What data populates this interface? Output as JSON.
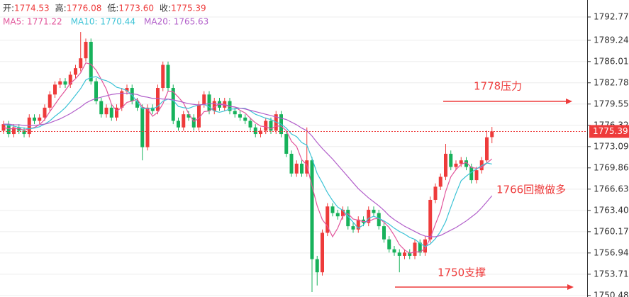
{
  "chart_data": {
    "type": "candlestick",
    "header": [
      {
        "label": "开:",
        "value": "1774.53"
      },
      {
        "label": "高:",
        "value": "1776.08"
      },
      {
        "label": "低:",
        "value": "1773.60"
      },
      {
        "label": "收:",
        "value": "1775.39"
      }
    ],
    "up_color": "#ee3b3b",
    "down_color": "#17b25b",
    "open": [
      1775.5,
      1776.5,
      1775,
      1776,
      1775.5,
      1775,
      1777.5,
      1777,
      1777.5,
      1779,
      1781,
      1782.5,
      1783,
      1782.5,
      1784,
      1785,
      1786.5,
      1789,
      1783,
      1780,
      1778,
      1779,
      1777.5,
      1779,
      1781.5,
      1782,
      1780,
      1779,
      1773,
      1779,
      1778.5,
      1782,
      1785.5,
      1782,
      1777,
      1776,
      1778,
      1777.5,
      1776,
      1779.5,
      1781,
      1778.5,
      1780,
      1779,
      1780,
      1778.5,
      1778,
      1777.5,
      1777,
      1776,
      1775,
      1775.5,
      1777,
      1775.5,
      1778,
      1775,
      1772,
      1769,
      1770.5,
      1769,
      1771,
      1756,
      1754,
      1760,
      1764,
      1763,
      1762.5,
      1763.5,
      1761,
      1760.5,
      1762,
      1761.5,
      1763.5,
      1763,
      1761,
      1759,
      1757.5,
      1757,
      1756.5,
      1757,
      1756.5,
      1758.5,
      1757,
      1759,
      1765,
      1767,
      1768.5,
      1772,
      1770,
      1770.5,
      1771,
      1770,
      1768,
      1769.5,
      1771,
      1774.53
    ],
    "high": [
      1777,
      1777,
      1776.5,
      1776.5,
      1776,
      1778,
      1778,
      1778,
      1779.5,
      1781.5,
      1783,
      1783.5,
      1783.5,
      1784.5,
      1785.5,
      1790.5,
      1789.5,
      1789.5,
      1783.5,
      1780.5,
      1779.5,
      1779.5,
      1779.5,
      1782,
      1782.5,
      1782.5,
      1780.5,
      1779.5,
      1779.5,
      1779.5,
      1782.5,
      1786,
      1786,
      1782.5,
      1777.5,
      1778.5,
      1778.5,
      1778,
      1780,
      1781.5,
      1781.5,
      1780.5,
      1780.5,
      1780.5,
      1780.5,
      1779,
      1778.5,
      1778,
      1777.5,
      1776.5,
      1776,
      1777.5,
      1777.5,
      1778.5,
      1778.5,
      1775.5,
      1772.5,
      1771,
      1771,
      1776,
      1771.5,
      1756.5,
      1760.5,
      1764.5,
      1764.5,
      1763.5,
      1764,
      1764,
      1761.5,
      1762.5,
      1762.5,
      1764,
      1764,
      1763.5,
      1761.5,
      1759.5,
      1758,
      1757.5,
      1757.5,
      1757.5,
      1759,
      1759,
      1759.5,
      1765.5,
      1767.5,
      1769,
      1773.5,
      1772.5,
      1771,
      1771.5,
      1771.5,
      1770.5,
      1770,
      1771.5,
      1775.5,
      1776.08
    ],
    "low": [
      1775,
      1774.5,
      1774.5,
      1775,
      1774.5,
      1774.5,
      1776.5,
      1776.5,
      1777,
      1778.5,
      1780.5,
      1782,
      1782,
      1782,
      1783.5,
      1784.5,
      1786,
      1782.5,
      1779.5,
      1777.5,
      1777.5,
      1777,
      1777,
      1778.5,
      1781,
      1779.5,
      1778.5,
      1771,
      1772.5,
      1778,
      1778,
      1781.5,
      1781.5,
      1776.5,
      1775.5,
      1775.5,
      1777,
      1775.5,
      1775.5,
      1779,
      1778,
      1778,
      1778.5,
      1778.5,
      1778,
      1777.5,
      1777,
      1776.5,
      1775.5,
      1774.5,
      1774.5,
      1775,
      1775,
      1775,
      1774.5,
      1771.5,
      1768.5,
      1768.5,
      1768.5,
      1768.5,
      1751,
      1752,
      1753.5,
      1759.5,
      1762.5,
      1762,
      1762,
      1760.5,
      1760,
      1760,
      1761,
      1761,
      1762.5,
      1760.5,
      1758.5,
      1757,
      1756.5,
      1754,
      1756,
      1756,
      1756,
      1756.5,
      1756.5,
      1758.5,
      1764.5,
      1766.5,
      1768,
      1769.5,
      1769.5,
      1770,
      1769.5,
      1767.5,
      1767.5,
      1769,
      1770.5,
      1773.6
    ],
    "close": [
      1776.5,
      1775,
      1776,
      1775.5,
      1775,
      1777.5,
      1777,
      1777.5,
      1779,
      1781,
      1782.5,
      1783,
      1782.5,
      1784,
      1785,
      1786.5,
      1789,
      1783,
      1780,
      1778,
      1779,
      1777.5,
      1779,
      1781.5,
      1782,
      1780,
      1779,
      1773,
      1779,
      1778.5,
      1782,
      1785.5,
      1782,
      1777,
      1776,
      1778,
      1777.5,
      1776,
      1779.5,
      1781,
      1778.5,
      1780,
      1779,
      1780,
      1778.5,
      1778,
      1777.5,
      1777,
      1776,
      1775,
      1775.5,
      1777,
      1775.5,
      1778,
      1775,
      1772,
      1769,
      1770.5,
      1769,
      1771,
      1756,
      1754,
      1760,
      1764,
      1763,
      1762.5,
      1763.5,
      1761,
      1760.5,
      1762,
      1761.5,
      1763.5,
      1763,
      1761,
      1759,
      1757.5,
      1757,
      1756.5,
      1757,
      1756.5,
      1758.5,
      1757,
      1759,
      1765,
      1767,
      1768.5,
      1772,
      1770,
      1770.5,
      1771,
      1770,
      1768,
      1769.5,
      1771,
      1774.5,
      1775.39
    ],
    "series": [
      {
        "name": "MA5",
        "label": "MA5: 1771.22",
        "color": "#e2559b",
        "values": [
          1776,
          1775.8,
          1775.8,
          1775.8,
          1775.6,
          1775.8,
          1776,
          1776.4,
          1777.2,
          1778.4,
          1779.5,
          1780.6,
          1781.6,
          1782.7,
          1783.4,
          1784.3,
          1785.8,
          1785.6,
          1784.7,
          1783.3,
          1781.8,
          1779.5,
          1778.5,
          1779,
          1779.8,
          1780,
          1780.3,
          1779.1,
          1778.8,
          1777.7,
          1778.3,
          1779.6,
          1781.5,
          1781.4,
          1780.6,
          1779.7,
          1778.1,
          1776.9,
          1777.4,
          1778.4,
          1778.5,
          1779.1,
          1779.6,
          1779.5,
          1779.2,
          1779.1,
          1778.6,
          1778.2,
          1777.4,
          1776.7,
          1776.2,
          1776.1,
          1775.8,
          1776.2,
          1776.2,
          1775.5,
          1773.9,
          1773.1,
          1771.1,
          1770.3,
          1767.1,
          1764.1,
          1762,
          1761,
          1759.4,
          1760.7,
          1762.6,
          1762.9,
          1762.1,
          1761.9,
          1761.7,
          1761.7,
          1762.1,
          1762.2,
          1761.6,
          1760.8,
          1759.6,
          1758.2,
          1757.4,
          1756.9,
          1757.1,
          1757.1,
          1757.6,
          1759.2,
          1761.3,
          1763.3,
          1766.3,
          1768.5,
          1769.6,
          1770.4,
          1770.7,
          1769.9,
          1769.8,
          1769.9,
          1770.6,
          1771.22
        ]
      },
      {
        "name": "MA10",
        "label": "MA10: 1770.44",
        "color": "#3cc3d6",
        "values": [
          1776.5,
          1776.3,
          1776.2,
          1776,
          1775.9,
          1775.8,
          1775.9,
          1776.1,
          1776.5,
          1777,
          1777.7,
          1778.3,
          1779,
          1779.9,
          1780.9,
          1781.9,
          1783.2,
          1783.6,
          1783.7,
          1783.3,
          1783.1,
          1782.7,
          1782.1,
          1781.9,
          1781.6,
          1780.9,
          1779.9,
          1778.8,
          1778.9,
          1778.8,
          1779.2,
          1780,
          1780.3,
          1780.1,
          1779.2,
          1779,
          1778.9,
          1779.2,
          1779.4,
          1779.5,
          1779.1,
          1778.5,
          1778.3,
          1778.5,
          1778.8,
          1778.8,
          1778.9,
          1778.9,
          1778.5,
          1778,
          1777.7,
          1777.4,
          1777.2,
          1776.8,
          1776.5,
          1775.9,
          1775,
          1774.6,
          1773.7,
          1773.3,
          1771.3,
          1769,
          1767.6,
          1766.1,
          1764.9,
          1763.9,
          1763.4,
          1762.5,
          1761.6,
          1760.7,
          1761.2,
          1762.2,
          1762.5,
          1762.2,
          1761.8,
          1761.3,
          1760.7,
          1760.2,
          1759.8,
          1759.3,
          1759,
          1758.4,
          1757.9,
          1758.3,
          1759.1,
          1760.2,
          1761.7,
          1763.9,
          1766,
          1767.9,
          1768.6,
          1769.2,
          1769.7,
          1770.2,
          1770.6,
          1770.44
        ]
      },
      {
        "name": "MA20",
        "label": "MA20: 1765.63",
        "color": "#b25fca",
        "values": [
          1776.5,
          1776.5,
          1776.4,
          1776.4,
          1776.3,
          1776.3,
          1776.3,
          1776.4,
          1776.5,
          1776.7,
          1777,
          1777.3,
          1777.7,
          1778.1,
          1778.6,
          1779.1,
          1779.7,
          1780.1,
          1780.4,
          1780.6,
          1780.8,
          1781,
          1781.1,
          1781.2,
          1781.2,
          1781.1,
          1781,
          1780.7,
          1780.6,
          1780.4,
          1780.4,
          1780.3,
          1780.3,
          1780.2,
          1780,
          1779.8,
          1779.6,
          1779.5,
          1779.4,
          1779.5,
          1779.6,
          1779.6,
          1779.5,
          1779.4,
          1779.2,
          1779.1,
          1778.9,
          1778.8,
          1778.6,
          1778.4,
          1778.2,
          1778,
          1777.8,
          1777.6,
          1777.4,
          1777.2,
          1776.8,
          1776.4,
          1775.9,
          1775.5,
          1774.7,
          1773.7,
          1772.8,
          1772,
          1771.2,
          1770.3,
          1769.4,
          1768.5,
          1767.6,
          1766.7,
          1766,
          1765.3,
          1764.7,
          1764.1,
          1763.4,
          1762.6,
          1762,
          1761.5,
          1761,
          1760.6,
          1760.2,
          1759.8,
          1759.5,
          1759.4,
          1759.4,
          1759.6,
          1760,
          1760.4,
          1760.8,
          1761.3,
          1761.8,
          1762.4,
          1763,
          1763.8,
          1764.7,
          1765.63
        ]
      }
    ],
    "annotations": [
      "1778压力",
      "1766回撤做多",
      "1750支撑"
    ],
    "ylim": [
      1750.25,
      1795.35
    ],
    "yticks": [
      1792.77,
      1789.24,
      1786.01,
      1782.78,
      1779.55,
      1776.32,
      1773.09,
      1769.86,
      1766.63,
      {
        "value": 1763.4,
        "label": "1763.40"
      },
      1760.17,
      1756.94,
      1753.71,
      1750.48
    ],
    "grid": true
  }
}
